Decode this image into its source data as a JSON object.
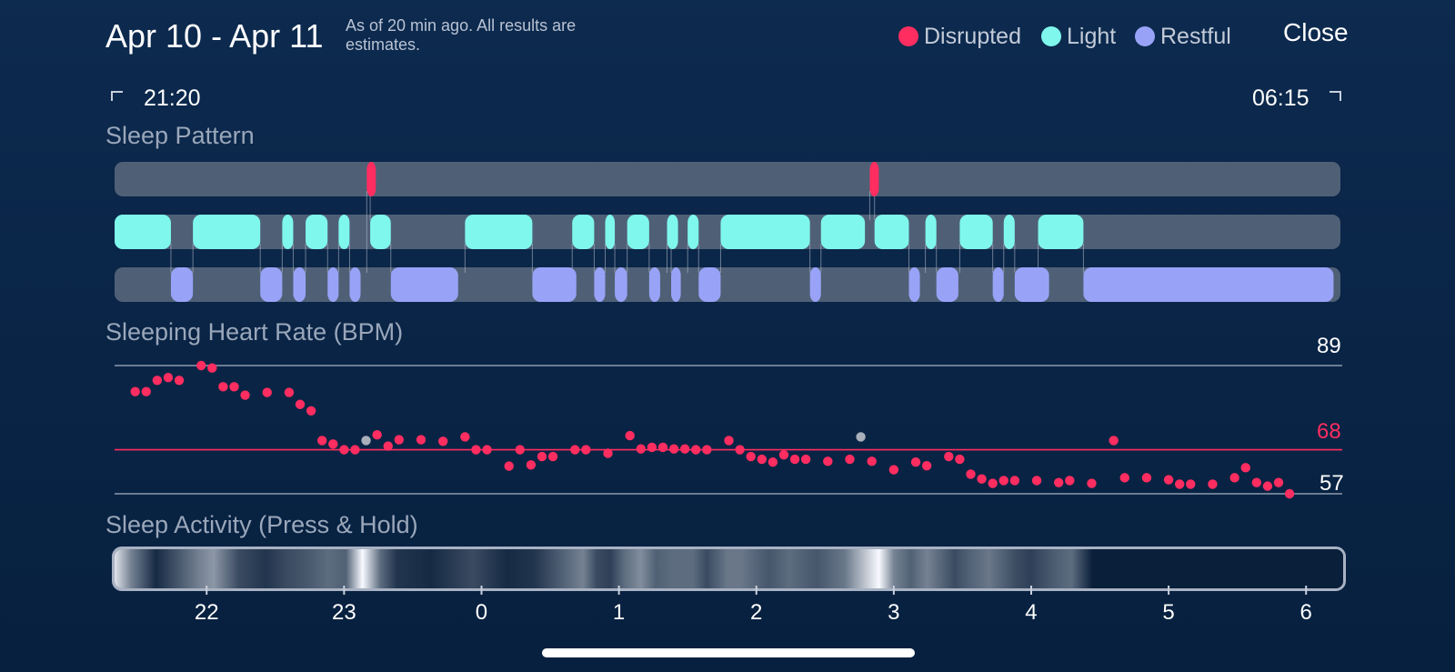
{
  "header": {
    "title": "Apr 10 - Apr 11",
    "subtitle": "As of 20 min ago. All results are estimates.",
    "legend": [
      {
        "label": "Disrupted",
        "color": "#ff2d60"
      },
      {
        "label": "Light",
        "color": "#7ff7ec"
      },
      {
        "label": "Restful",
        "color": "#98a3f7"
      }
    ],
    "close_label": "Close"
  },
  "timeline": {
    "start": "21:20",
    "end": "06:15"
  },
  "sleep_pattern": {
    "label": "Sleep Pattern",
    "colors": {
      "disrupted": "#ff2d60",
      "light": "#7ff7ec",
      "restful": "#98a3f7"
    }
  },
  "heart_rate": {
    "label": "Sleeping Heart Rate (BPM)",
    "max_label": "89",
    "avg_label": "68",
    "min_label": "57"
  },
  "activity": {
    "label": "Sleep Activity (Press & Hold)",
    "hour_ticks": [
      "22",
      "23",
      "0",
      "1",
      "2",
      "3",
      "4",
      "5",
      "6"
    ]
  },
  "chart_data": {
    "type": "scatter",
    "title": "Sleeping Heart Rate (BPM)",
    "x_unit": "hours since 21:20",
    "y_unit": "BPM",
    "ylim": [
      57,
      89
    ],
    "reference_lines": {
      "max": 89,
      "average": 68,
      "min": 57
    },
    "points": [
      {
        "x": 0.15,
        "y": 82.5
      },
      {
        "x": 0.23,
        "y": 82.5
      },
      {
        "x": 0.31,
        "y": 85.3
      },
      {
        "x": 0.39,
        "y": 86
      },
      {
        "x": 0.47,
        "y": 85.3
      },
      {
        "x": 0.63,
        "y": 89
      },
      {
        "x": 0.71,
        "y": 88.4
      },
      {
        "x": 0.79,
        "y": 83.7
      },
      {
        "x": 0.87,
        "y": 83.7
      },
      {
        "x": 0.95,
        "y": 81.6
      },
      {
        "x": 1.11,
        "y": 82.3
      },
      {
        "x": 1.27,
        "y": 82.3
      },
      {
        "x": 1.35,
        "y": 79.3
      },
      {
        "x": 1.43,
        "y": 77.7
      },
      {
        "x": 1.51,
        "y": 70.3
      },
      {
        "x": 1.59,
        "y": 69.4
      },
      {
        "x": 1.67,
        "y": 68
      },
      {
        "x": 1.75,
        "y": 68
      },
      {
        "x": 1.91,
        "y": 71.7
      },
      {
        "x": 1.99,
        "y": 68.9
      },
      {
        "x": 2.07,
        "y": 70.5
      },
      {
        "x": 2.23,
        "y": 70.5
      },
      {
        "x": 2.39,
        "y": 70.1
      },
      {
        "x": 2.55,
        "y": 71.2
      },
      {
        "x": 2.63,
        "y": 68
      },
      {
        "x": 2.71,
        "y": 68
      },
      {
        "x": 2.87,
        "y": 63.9
      },
      {
        "x": 2.95,
        "y": 68
      },
      {
        "x": 3.03,
        "y": 64.2
      },
      {
        "x": 3.11,
        "y": 66.3
      },
      {
        "x": 3.19,
        "y": 66.3
      },
      {
        "x": 3.35,
        "y": 68
      },
      {
        "x": 3.43,
        "y": 68
      },
      {
        "x": 3.59,
        "y": 67.1
      },
      {
        "x": 3.75,
        "y": 71.5
      },
      {
        "x": 3.83,
        "y": 68.2
      },
      {
        "x": 3.91,
        "y": 68.6
      },
      {
        "x": 3.99,
        "y": 68.6
      },
      {
        "x": 4.07,
        "y": 68.2
      },
      {
        "x": 4.15,
        "y": 68.2
      },
      {
        "x": 4.23,
        "y": 68
      },
      {
        "x": 4.31,
        "y": 68
      },
      {
        "x": 4.47,
        "y": 70.3
      },
      {
        "x": 4.55,
        "y": 68
      },
      {
        "x": 4.63,
        "y": 66.3
      },
      {
        "x": 4.71,
        "y": 65.6
      },
      {
        "x": 4.79,
        "y": 64.9
      },
      {
        "x": 4.87,
        "y": 66.7
      },
      {
        "x": 4.95,
        "y": 65.6
      },
      {
        "x": 5.03,
        "y": 65.6
      },
      {
        "x": 5.19,
        "y": 65.1
      },
      {
        "x": 5.35,
        "y": 65.6
      },
      {
        "x": 5.51,
        "y": 65.1
      },
      {
        "x": 5.67,
        "y": 63
      },
      {
        "x": 5.83,
        "y": 64.9
      },
      {
        "x": 5.91,
        "y": 64
      },
      {
        "x": 6.07,
        "y": 66.3
      },
      {
        "x": 6.15,
        "y": 65.6
      },
      {
        "x": 6.23,
        "y": 61.9
      },
      {
        "x": 6.31,
        "y": 60.7
      },
      {
        "x": 6.39,
        "y": 59.6
      },
      {
        "x": 6.47,
        "y": 60.3
      },
      {
        "x": 6.55,
        "y": 60.3
      },
      {
        "x": 6.71,
        "y": 60.3
      },
      {
        "x": 6.87,
        "y": 59.8
      },
      {
        "x": 6.95,
        "y": 60.3
      },
      {
        "x": 7.11,
        "y": 59.6
      },
      {
        "x": 7.27,
        "y": 70.3
      },
      {
        "x": 7.35,
        "y": 61
      },
      {
        "x": 7.51,
        "y": 61
      },
      {
        "x": 7.67,
        "y": 60.5
      },
      {
        "x": 7.75,
        "y": 59.4
      },
      {
        "x": 7.83,
        "y": 59.4
      },
      {
        "x": 7.99,
        "y": 59.4
      },
      {
        "x": 8.15,
        "y": 61
      },
      {
        "x": 8.23,
        "y": 63.5
      },
      {
        "x": 8.31,
        "y": 59.8
      },
      {
        "x": 8.39,
        "y": 58.9
      },
      {
        "x": 8.47,
        "y": 59.8
      },
      {
        "x": 8.55,
        "y": 57
      }
    ],
    "missing_points": [
      {
        "x": 1.83,
        "y": 70.3
      },
      {
        "x": 5.43,
        "y": 71.2
      }
    ],
    "sleep_pattern": {
      "disrupted": [
        [
          1.835,
          1.885
        ],
        [
          5.495,
          5.545
        ]
      ],
      "light": [
        [
          0,
          0.41
        ],
        [
          0.57,
          1.06
        ],
        [
          1.22,
          1.3
        ],
        [
          1.39,
          1.55
        ],
        [
          1.63,
          1.71
        ],
        [
          1.86,
          2.01
        ],
        [
          2.55,
          3.04
        ],
        [
          3.33,
          3.49
        ],
        [
          3.57,
          3.64
        ],
        [
          3.73,
          3.89
        ],
        [
          4.02,
          4.1
        ],
        [
          4.17,
          4.25
        ],
        [
          4.41,
          5.06
        ],
        [
          5.14,
          5.46
        ],
        [
          5.53,
          5.78
        ],
        [
          5.9,
          5.98
        ],
        [
          6.15,
          6.39
        ],
        [
          6.47,
          6.55
        ],
        [
          6.72,
          7.05
        ]
      ],
      "restful": [
        [
          0.41,
          0.57
        ],
        [
          1.06,
          1.22
        ],
        [
          1.3,
          1.39
        ],
        [
          1.55,
          1.63
        ],
        [
          1.71,
          1.79
        ],
        [
          2.01,
          2.5
        ],
        [
          3.04,
          3.36
        ],
        [
          3.49,
          3.57
        ],
        [
          3.64,
          3.73
        ],
        [
          3.89,
          3.97
        ],
        [
          4.05,
          4.12
        ],
        [
          4.25,
          4.41
        ],
        [
          5.06,
          5.14
        ],
        [
          5.78,
          5.86
        ],
        [
          5.98,
          6.14
        ],
        [
          6.39,
          6.47
        ],
        [
          6.55,
          6.8
        ],
        [
          7.05,
          8.87
        ]
      ]
    },
    "activity_intensity": [
      {
        "x": 0.0,
        "v": 0.9
      },
      {
        "x": 0.12,
        "v": 0.45
      },
      {
        "x": 0.3,
        "v": 0.05
      },
      {
        "x": 0.62,
        "v": 0.45
      },
      {
        "x": 0.72,
        "v": 0.55
      },
      {
        "x": 0.9,
        "v": 0.2
      },
      {
        "x": 1.1,
        "v": 0.1
      },
      {
        "x": 1.25,
        "v": 0.2
      },
      {
        "x": 1.38,
        "v": 0.25
      },
      {
        "x": 1.55,
        "v": 0.35
      },
      {
        "x": 1.68,
        "v": 0.3
      },
      {
        "x": 1.8,
        "v": 1.0
      },
      {
        "x": 1.93,
        "v": 0.35
      },
      {
        "x": 2.05,
        "v": 0.1
      },
      {
        "x": 2.3,
        "v": 0.05
      },
      {
        "x": 2.6,
        "v": 0.2
      },
      {
        "x": 2.85,
        "v": 0.05
      },
      {
        "x": 3.05,
        "v": 0.1
      },
      {
        "x": 3.4,
        "v": 0.45
      },
      {
        "x": 3.5,
        "v": 0.2
      },
      {
        "x": 3.6,
        "v": 0.15
      },
      {
        "x": 3.7,
        "v": 0.35
      },
      {
        "x": 3.82,
        "v": 0.5
      },
      {
        "x": 3.93,
        "v": 0.3
      },
      {
        "x": 4.05,
        "v": 0.35
      },
      {
        "x": 4.2,
        "v": 0.35
      },
      {
        "x": 4.3,
        "v": 0.2
      },
      {
        "x": 4.45,
        "v": 0.4
      },
      {
        "x": 4.55,
        "v": 0.4
      },
      {
        "x": 4.75,
        "v": 0.25
      },
      {
        "x": 4.9,
        "v": 0.35
      },
      {
        "x": 5.1,
        "v": 0.25
      },
      {
        "x": 5.3,
        "v": 0.4
      },
      {
        "x": 5.55,
        "v": 1.0
      },
      {
        "x": 5.66,
        "v": 0.45
      },
      {
        "x": 5.78,
        "v": 0.3
      },
      {
        "x": 5.9,
        "v": 0.45
      },
      {
        "x": 6.1,
        "v": 0.2
      },
      {
        "x": 6.2,
        "v": 0.3
      },
      {
        "x": 6.35,
        "v": 0.4
      },
      {
        "x": 6.55,
        "v": 0.2
      },
      {
        "x": 6.65,
        "v": 0.15
      },
      {
        "x": 6.85,
        "v": 0.3
      },
      {
        "x": 6.95,
        "v": 0.35
      },
      {
        "x": 7.1,
        "v": 0.0
      }
    ],
    "activity_ticks": [
      0.67,
      1.67,
      2.67,
      3.67,
      4.67,
      5.67,
      6.67,
      7.67,
      8.67
    ]
  }
}
